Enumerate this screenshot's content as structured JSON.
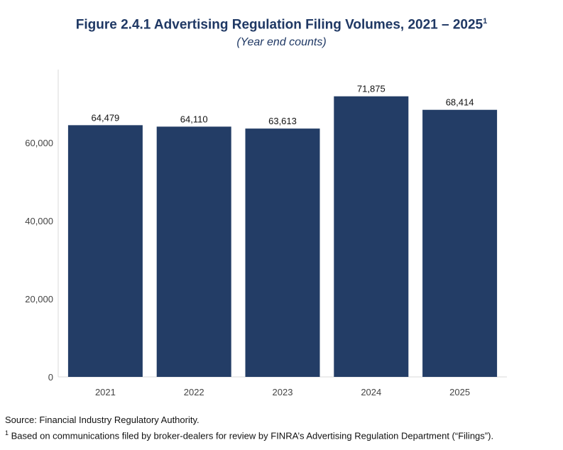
{
  "title": "Figure 2.4.1 Advertising Regulation Filing Volumes, 2021 – 2025",
  "title_footnote_mark": "1",
  "subtitle": "(Year end counts)",
  "source": "Source: Financial Industry Regulatory Authority.",
  "footnote": {
    "mark": "1",
    "text": "Based on communications filed by broker-dealers for review by FINRA’s Advertising Regulation Department (“Filings”)."
  },
  "chart_data": {
    "type": "bar",
    "categories": [
      "2021",
      "2022",
      "2023",
      "2024",
      "2025"
    ],
    "values": [
      64479,
      64110,
      63613,
      71875,
      68414
    ],
    "value_labels": [
      "64,479",
      "64,110",
      "63,613",
      "71,875",
      "68,414"
    ],
    "ylim": [
      0,
      79000
    ],
    "yticks": [
      0,
      20000,
      40000,
      60000
    ],
    "ytick_labels": [
      "0",
      "20,000",
      "40,000",
      "60,000"
    ],
    "bar_color": "#233d66",
    "grid": false,
    "legend": "none"
  }
}
